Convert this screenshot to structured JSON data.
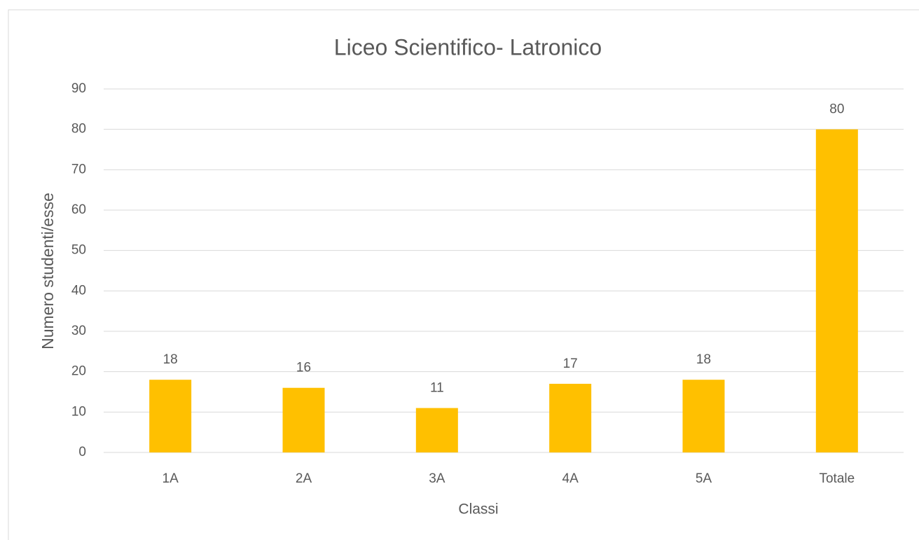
{
  "chart_data": {
    "type": "bar",
    "title": "Liceo Scientifico- Latronico",
    "xlabel": "Classi",
    "ylabel": "Numero studenti/esse",
    "categories": [
      "1A",
      "2A",
      "3A",
      "4A",
      "5A",
      "Totale"
    ],
    "values": [
      18,
      16,
      11,
      17,
      18,
      80
    ],
    "color": "#ffc000",
    "ylim": [
      0,
      90
    ],
    "yticks": [
      0,
      10,
      20,
      30,
      40,
      50,
      60,
      70,
      80,
      90
    ],
    "grid": true
  }
}
